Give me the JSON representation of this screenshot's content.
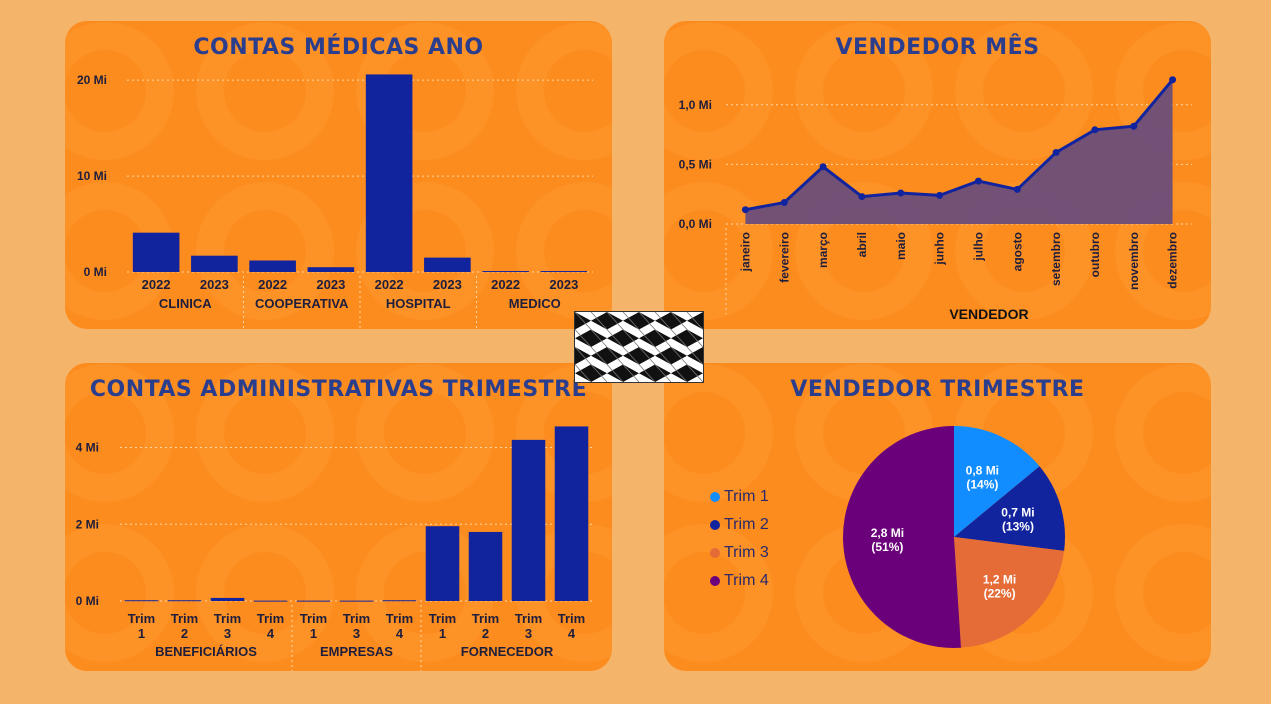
{
  "medicas": {
    "title": "CONTAS MÉDICAS ANO",
    "chart_data": {
      "type": "bar",
      "groups": [
        {
          "name": "CLINICA",
          "categories": [
            "2022",
            "2023"
          ],
          "values": [
            4.1,
            1.7
          ]
        },
        {
          "name": "COOPERATIVA",
          "categories": [
            "2022",
            "2023"
          ],
          "values": [
            1.2,
            0.5
          ]
        },
        {
          "name": "HOSPITAL",
          "categories": [
            "2022",
            "2023"
          ],
          "values": [
            20.6,
            1.5
          ]
        },
        {
          "name": "MEDICO",
          "categories": [
            "2022",
            "2023"
          ],
          "values": [
            0.1,
            0.1
          ]
        }
      ],
      "ylim": [
        0,
        22
      ],
      "yticks": [
        {
          "v": 0,
          "label": "0 Mi"
        },
        {
          "v": 10,
          "label": "10 Mi"
        },
        {
          "v": 20,
          "label": "20 Mi"
        }
      ],
      "color": "#12239e",
      "grid": true
    }
  },
  "vendedor_mes": {
    "title": "VENDEDOR MÊS",
    "chart_data": {
      "type": "area",
      "x": [
        "janeiro",
        "fevereiro",
        "março",
        "abril",
        "maio",
        "junho",
        "julho",
        "agosto",
        "setembro",
        "outubro",
        "novembro",
        "dezembro"
      ],
      "values": [
        0.12,
        0.18,
        0.48,
        0.23,
        0.26,
        0.24,
        0.36,
        0.29,
        0.6,
        0.79,
        0.82,
        1.21
      ],
      "ylim": [
        0,
        1.3
      ],
      "yticks": [
        {
          "v": 0,
          "label": "0,0 Mi"
        },
        {
          "v": 0.5,
          "label": "0,5 Mi"
        },
        {
          "v": 1.0,
          "label": "1,0 Mi"
        }
      ],
      "xlabel": "VENDEDOR",
      "color": "#12239e",
      "fill": "#6b4e7a",
      "grid": true
    }
  },
  "administrativas": {
    "title": "CONTAS ADMINISTRATIVAS TRIMESTRE",
    "chart_data": {
      "type": "bar",
      "groups": [
        {
          "name": "BENEFICIÁRIOS",
          "categories": [
            [
              "Trim",
              "1"
            ],
            [
              "Trim",
              "2"
            ],
            [
              "Trim",
              "3"
            ],
            [
              "Trim",
              "4"
            ]
          ],
          "values": [
            0.02,
            0.02,
            0.08,
            0.01
          ]
        },
        {
          "name": "EMPRESAS",
          "categories": [
            [
              "Trim",
              "1"
            ],
            [
              "Trim",
              "3"
            ],
            [
              "Trim",
              "4"
            ]
          ],
          "values": [
            0.01,
            0.01,
            0.02
          ]
        },
        {
          "name": "FORNECEDOR",
          "categories": [
            [
              "Trim",
              "1"
            ],
            [
              "Trim",
              "2"
            ],
            [
              "Trim",
              "3"
            ],
            [
              "Trim",
              "4"
            ]
          ],
          "values": [
            1.95,
            1.8,
            4.2,
            4.55
          ]
        }
      ],
      "ylim": [
        0,
        4.9
      ],
      "yticks": [
        {
          "v": 0,
          "label": "0 Mi"
        },
        {
          "v": 2,
          "label": "2 Mi"
        },
        {
          "v": 4,
          "label": "4 Mi"
        }
      ],
      "color": "#12239e",
      "grid": true
    }
  },
  "vendedor_trimestre": {
    "title": "VENDEDOR TRIMESTRE",
    "chart_data": {
      "type": "pie",
      "slices": [
        {
          "name": "Trim 1",
          "value": 0.8,
          "label": "0,8 Mi",
          "pct": "(14%)",
          "share": 0.14,
          "color": "#118dff"
        },
        {
          "name": "Trim 2",
          "value": 0.7,
          "label": "0,7 Mi",
          "pct": "(13%)",
          "share": 0.13,
          "color": "#12239e"
        },
        {
          "name": "Trim 3",
          "value": 1.2,
          "label": "1,2 Mi",
          "pct": "(22%)",
          "share": 0.22,
          "color": "#e66c37"
        },
        {
          "name": "Trim 4",
          "value": 2.8,
          "label": "2,8 Mi",
          "pct": "(51%)",
          "share": 0.51,
          "color": "#6b007b"
        }
      ],
      "legend": "left"
    }
  },
  "colors": {
    "page_bg": "#f4b46a",
    "panel_bg": "#fd8c1e",
    "title": "#2b3e8e",
    "axis_text": "#1e1e3c",
    "watermark_icon": "you-watermark-icon",
    "center_logo": "diamond-pattern-logo"
  }
}
